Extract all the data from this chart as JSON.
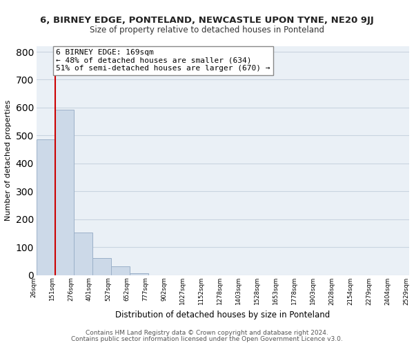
{
  "title": "6, BIRNEY EDGE, PONTELAND, NEWCASTLE UPON TYNE, NE20 9JJ",
  "subtitle": "Size of property relative to detached houses in Ponteland",
  "xlabel": "Distribution of detached houses by size in Ponteland",
  "ylabel": "Number of detached properties",
  "bar_values": [
    487,
    592,
    152,
    60,
    30,
    7,
    0,
    0,
    0,
    0,
    0,
    0,
    0,
    0,
    0,
    0,
    0,
    0,
    0,
    0
  ],
  "bar_color": "#ccd9e8",
  "bar_edge_color": "#9bb0c8",
  "x_labels": [
    "26sqm",
    "151sqm",
    "276sqm",
    "401sqm",
    "527sqm",
    "652sqm",
    "777sqm",
    "902sqm",
    "1027sqm",
    "1152sqm",
    "1278sqm",
    "1403sqm",
    "1528sqm",
    "1653sqm",
    "1778sqm",
    "1903sqm",
    "2028sqm",
    "2154sqm",
    "2279sqm",
    "2404sqm",
    "2529sqm"
  ],
  "ylim": [
    0,
    820
  ],
  "yticks": [
    0,
    100,
    200,
    300,
    400,
    500,
    600,
    700,
    800
  ],
  "property_line_x": 1,
  "property_line_color": "#cc0000",
  "annotation_text": "6 BIRNEY EDGE: 169sqm\n← 48% of detached houses are smaller (634)\n51% of semi-detached houses are larger (670) →",
  "annotation_box_color": "#ffffff",
  "annotation_box_edge": "#888888",
  "footnote1": "Contains HM Land Registry data © Crown copyright and database right 2024.",
  "footnote2": "Contains public sector information licensed under the Open Government Licence v3.0.",
  "grid_color": "#c8d4e0",
  "background_color": "#eaf0f6"
}
